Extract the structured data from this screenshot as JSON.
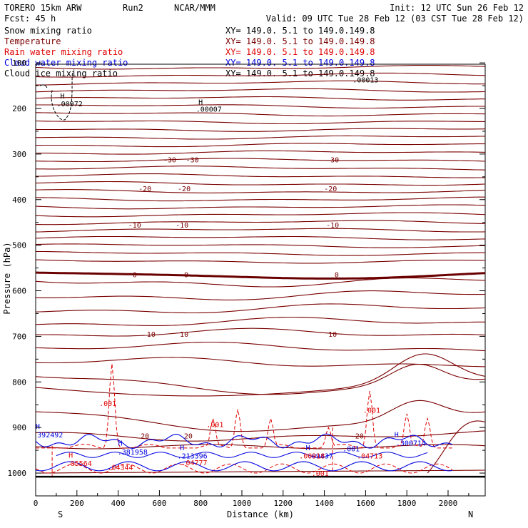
{
  "header": {
    "model": "TORERO  15km ARW",
    "run": "Run2",
    "org": "NCAR/MMM",
    "init": "Init: 12 UTC Sun 26 Feb 12",
    "fcst": "Fcst:   45 h",
    "valid": "Valid: 09 UTC Tue 28 Feb 12 (03 CST Tue 28 Feb 12)"
  },
  "colors": {
    "snow": "#000000",
    "temperature": "#7a0000",
    "rain": "#e00000",
    "cloud_water": "#0000e0",
    "cloud_ice": "#000000"
  },
  "fields": [
    {
      "name": "Snow mixing ratio",
      "xy": "XY= 149.0.   5.1 to 149.0.149.8",
      "key": "snow"
    },
    {
      "name": "Temperature",
      "xy": "XY= 149.0.   5.1 to 149.0.149.8",
      "key": "temperature"
    },
    {
      "name": "Rain water mixing ratio",
      "xy": "XY= 149.0.   5.1 to 149.0.149.8",
      "key": "rain"
    },
    {
      "name": "Cloud water mixing ratio",
      "xy": "XY= 149.0.   5.1 to 149.0.149.8",
      "key": "cloud_water"
    },
    {
      "name": "Cloud ice mixing ratio",
      "xy": "XY= 149.0.   5.1 to 149.0.149.8",
      "key": "cloud_ice"
    }
  ],
  "chart_data": {
    "type": "contour-cross-section",
    "xlabel": "Distance (km)",
    "ylabel": "Pressure (hPa)",
    "xlim": [
      0,
      2180
    ],
    "ylim": [
      1020,
      100
    ],
    "xticks": [
      0,
      200,
      400,
      600,
      800,
      1000,
      1200,
      1400,
      1600,
      1800,
      2000
    ],
    "yticks": [
      100,
      200,
      300,
      400,
      500,
      600,
      700,
      800,
      900,
      1000
    ],
    "endpoint_labels": {
      "left": "S",
      "right": "N"
    },
    "temperature_isotherms": [
      {
        "label": "-30",
        "pressure": 312,
        "label_x": [
          650,
          760,
          1440
        ]
      },
      {
        "label": "-20",
        "pressure": 375,
        "label_x": [
          530,
          720,
          1430
        ]
      },
      {
        "label": "-10",
        "pressure": 455,
        "label_x": [
          480,
          710,
          1440
        ]
      },
      {
        "label": "0",
        "pressure": 564,
        "label_x": [
          480,
          730,
          1460
        ]
      },
      {
        "label": "10",
        "pressure": 695,
        "label_x": [
          560,
          720,
          1440
        ]
      },
      {
        "label": "20",
        "pressure": 918,
        "label_x": [
          530,
          740,
          1570
        ]
      }
    ],
    "labels": [
      {
        "text": "H",
        "x": 130,
        "p": 178,
        "color": "snow"
      },
      {
        "text": ".00972",
        "x": 165,
        "p": 195,
        "color": "snow"
      },
      {
        "text": "H",
        "x": 800,
        "p": 191,
        "color": "snow"
      },
      {
        "text": ".00007",
        "x": 840,
        "p": 207,
        "color": "snow"
      },
      {
        "text": ".00013",
        "x": 1600,
        "p": 143,
        "color": "snow"
      },
      {
        "text": ".001",
        "x": 350,
        "p": 853,
        "color": "rain"
      },
      {
        "text": ".001",
        "x": 870,
        "p": 899,
        "color": "rain"
      },
      {
        "text": ".001",
        "x": 1630,
        "p": 868,
        "color": "rain"
      },
      {
        "text": "H",
        "x": 10,
        "p": 903,
        "color": "cloud_water"
      },
      {
        "text": "392492",
        "x": 70,
        "p": 922,
        "color": "cloud_water"
      },
      {
        "text": "H",
        "x": 410,
        "p": 940,
        "color": "cloud_water"
      },
      {
        "text": ".381958",
        "x": 470,
        "p": 959,
        "color": "cloud_water"
      },
      {
        "text": "H",
        "x": 710,
        "p": 950,
        "color": "cloud_water"
      },
      {
        "text": ".213396",
        "x": 760,
        "p": 968,
        "color": "cloud_water"
      },
      {
        "text": "H",
        "x": 1320,
        "p": 950,
        "color": "cloud_water"
      },
      {
        "text": ".09437",
        "x": 1380,
        "p": 968,
        "color": "cloud_water"
      },
      {
        "text": ".001",
        "x": 1530,
        "p": 952,
        "color": "cloud_water"
      },
      {
        "text": "H",
        "x": 1750,
        "p": 921,
        "color": "cloud_water"
      },
      {
        "text": ".300714",
        "x": 1820,
        "p": 940,
        "color": "cloud_water"
      },
      {
        "text": "H",
        "x": 170,
        "p": 966,
        "color": "rain"
      },
      {
        "text": ".05564",
        "x": 210,
        "p": 984,
        "color": "rain"
      },
      {
        "text": ".04344",
        "x": 410,
        "p": 993,
        "color": "rain"
      },
      {
        "text": ".04777",
        "x": 770,
        "p": 983,
        "color": "rain"
      },
      {
        "text": ".00918",
        "x": 1340,
        "p": 968,
        "color": "rain"
      },
      {
        "text": ".04713",
        "x": 1620,
        "p": 968,
        "color": "rain"
      },
      {
        "text": ".001",
        "x": 1380,
        "p": 1006,
        "color": "rain"
      }
    ]
  }
}
